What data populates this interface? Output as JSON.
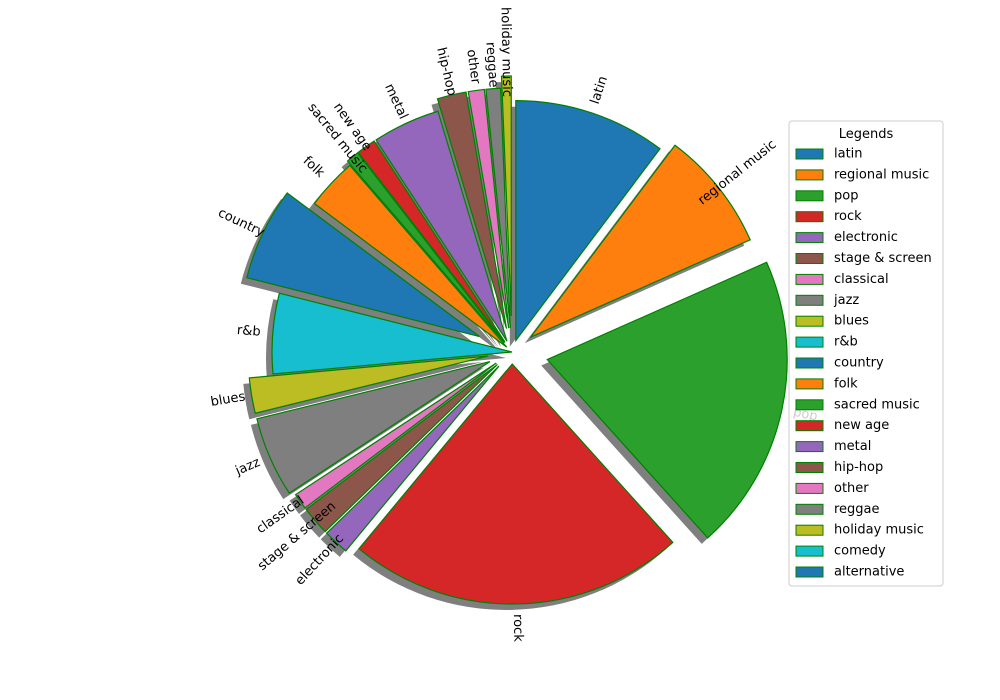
{
  "chart_data": {
    "type": "pie",
    "title": "",
    "legend_title": "Legends",
    "legend_position": "right",
    "start_angle_deg": 90,
    "direction": "clockwise",
    "slices": [
      {
        "label": "latin",
        "value": 9.5,
        "color": "#1f77b4",
        "explode": 0.05
      },
      {
        "label": "regional music",
        "value": 7.5,
        "color": "#ff7f0e",
        "explode": 0.1
      },
      {
        "label": "pop",
        "value": 18.5,
        "color": "#2ca02c",
        "explode": 0.15
      },
      {
        "label": "rock",
        "value": 21.0,
        "color": "#d62728",
        "explode": 0.05
      },
      {
        "label": "electronic",
        "value": 1.6,
        "color": "#9467bd",
        "explode": 0.08
      },
      {
        "label": "stage & screen",
        "value": 1.8,
        "color": "#8c564b",
        "explode": 0.08
      },
      {
        "label": "classical",
        "value": 1.0,
        "color": "#e377c2",
        "explode": 0.08
      },
      {
        "label": "jazz",
        "value": 5.0,
        "color": "#7f7f7f",
        "explode": 0.1
      },
      {
        "label": "blues",
        "value": 2.2,
        "color": "#bcbd22",
        "explode": 0.1
      },
      {
        "label": "r&b",
        "value": 5.0,
        "color": "#17becf",
        "explode": 0.0
      },
      {
        "label": "country",
        "value": 5.8,
        "color": "#1f77b4",
        "explode": 0.15
      },
      {
        "label": "folk",
        "value": 3.2,
        "color": "#ff7f0e",
        "explode": 0.03
      },
      {
        "label": "sacred music",
        "value": 0.8,
        "color": "#2ca02c",
        "explode": 0.05
      },
      {
        "label": "new age",
        "value": 1.2,
        "color": "#d62728",
        "explode": 0.05
      },
      {
        "label": "metal",
        "value": 4.2,
        "color": "#9467bd",
        "explode": 0.05
      },
      {
        "label": "hip-hop",
        "value": 1.8,
        "color": "#8c564b",
        "explode": 0.1
      },
      {
        "label": "other",
        "value": 1.0,
        "color": "#e377c2",
        "explode": 0.1
      },
      {
        "label": "reggae",
        "value": 0.9,
        "color": "#7f7f7f",
        "explode": 0.1
      },
      {
        "label": "holiday music",
        "value": 0.6,
        "color": "#bcbd22",
        "explode": 0.15
      },
      {
        "label": "comedy",
        "value": 0.0,
        "color": "#17becf",
        "explode": 0.0
      },
      {
        "label": "alternative",
        "value": 0.0,
        "color": "#1f77b4",
        "explode": 0.0
      }
    ]
  }
}
